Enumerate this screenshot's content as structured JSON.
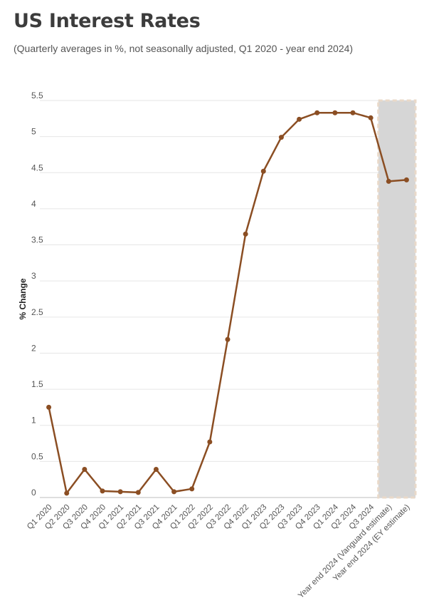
{
  "title": "US Interest Rates",
  "subtitle": "(Quarterly averages in %, not seasonally adjusted, Q1 2020 - year end 2024)",
  "colors": {
    "line": "#8b4e23",
    "shade": "#d6d6d6",
    "shade_border": "#e9d9c9",
    "grid": "#e6e6e6"
  },
  "chart_data": {
    "type": "line",
    "title": "US Interest Rates",
    "subtitle": "(Quarterly averages in %, not seasonally adjusted, Q1 2020 - year end 2024)",
    "xlabel": "",
    "ylabel": "% Change",
    "ylim": [
      0,
      5.5
    ],
    "yticks": [
      "0",
      "0.5",
      "1",
      "1.5",
      "2",
      "2.5",
      "3",
      "3.5",
      "4",
      "4.5",
      "5",
      "5.5"
    ],
    "grid": true,
    "categories": [
      "Q1 2020",
      "Q2 2020",
      "Q3 2020",
      "Q4 2020",
      "Q1 2021",
      "Q2 2021",
      "Q3 2021",
      "Q4 2021",
      "Q1 2022",
      "Q2 2022",
      "Q3 2022",
      "Q4 2022",
      "Q1 2023",
      "Q2 2023",
      "Q3 2023",
      "Q4 2023",
      "Q1 2024",
      "Q2 2024",
      "Q3 2024",
      "Year end 2024 (Vanguard estimate)",
      "Year end 2024 (EY estimate)"
    ],
    "values": [
      1.25,
      0.06,
      0.39,
      0.09,
      0.08,
      0.07,
      0.39,
      0.08,
      0.12,
      0.77,
      2.19,
      3.65,
      4.52,
      4.99,
      5.24,
      5.33,
      5.33,
      5.33,
      5.26,
      4.38,
      4.4
    ],
    "shaded_categories": [
      "Year end 2024 (Vanguard estimate)",
      "Year end 2024 (EY estimate)"
    ]
  }
}
